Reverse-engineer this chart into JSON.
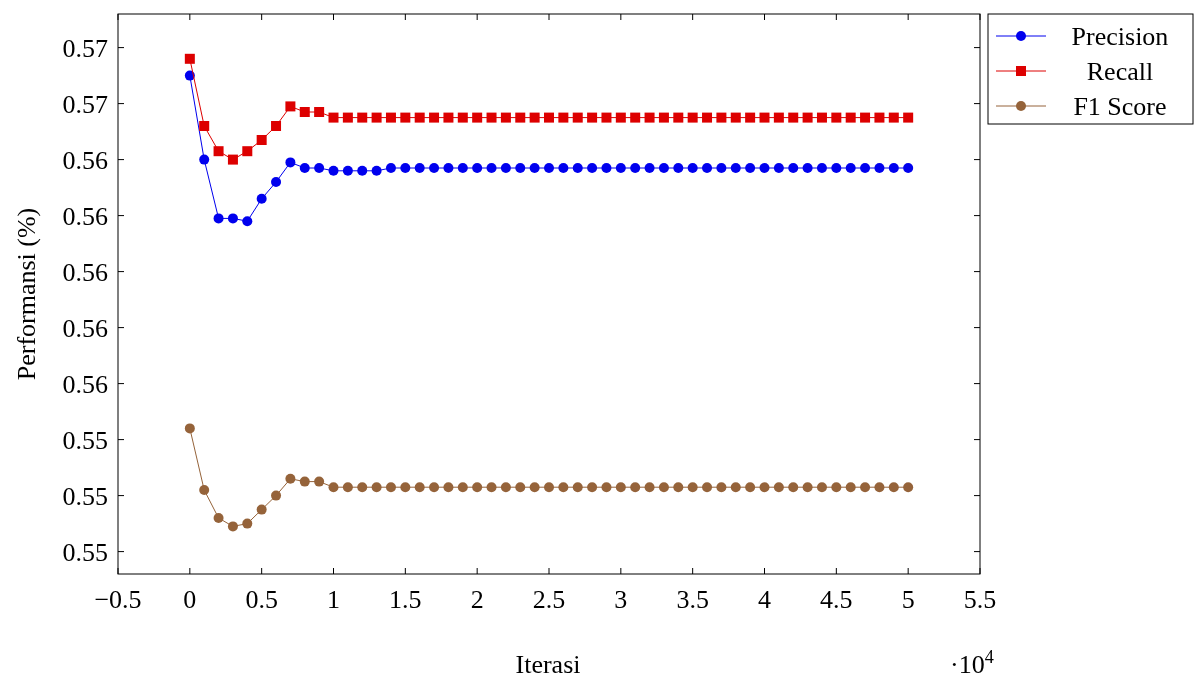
{
  "chart_data": {
    "type": "line",
    "xlabel": "Iterasi",
    "ylabel": "Performansi (%)",
    "annotations": [
      "·10$^{4}$"
    ],
    "x": [
      0,
      0.1,
      0.2,
      0.3,
      0.4,
      0.5,
      0.6,
      0.7,
      0.8,
      0.9,
      1,
      1.1,
      1.2,
      1.3,
      1.4,
      1.5,
      1.6,
      1.7,
      1.8,
      1.9,
      2,
      2.1,
      2.2,
      2.3,
      2.4,
      2.5,
      2.6,
      2.7,
      2.8,
      2.9,
      3,
      3.1,
      3.2,
      3.3,
      3.4,
      3.5,
      3.6,
      3.7,
      3.8,
      3.9,
      4,
      4.1,
      4.2,
      4.3,
      4.4,
      4.5,
      4.6,
      4.7,
      4.8,
      4.9,
      5
    ],
    "xlim": [
      -0.5,
      5.5
    ],
    "xticks": [
      {
        "value": -0.5,
        "label": "−0.5"
      },
      0,
      0.5,
      1,
      1.5,
      2,
      2.5,
      3,
      3.5,
      4,
      4.5,
      5,
      5.5
    ],
    "ylim": [
      0.5482,
      0.5682
    ],
    "yticks": [
      {
        "value": 0.549,
        "label": "0.55"
      },
      {
        "value": 0.551,
        "label": "0.55"
      },
      {
        "value": 0.553,
        "label": "0.55"
      },
      {
        "value": 0.555,
        "label": "0.56"
      },
      {
        "value": 0.557,
        "label": "0.56"
      },
      {
        "value": 0.559,
        "label": "0.56"
      },
      {
        "value": 0.561,
        "label": "0.56"
      },
      {
        "value": 0.563,
        "label": "0.56"
      },
      {
        "value": 0.565,
        "label": "0.57"
      },
      {
        "value": 0.567,
        "label": "0.57"
      }
    ],
    "grid": false,
    "legend": "top right",
    "line_style": "solid",
    "series": [
      {
        "name": "Precision",
        "color": "#0000ee",
        "marker": "circle",
        "values": [
          0.566,
          0.563,
          0.5609,
          0.5609,
          0.5608,
          0.5616,
          0.5622,
          0.5629,
          0.5627,
          0.5627,
          0.5626,
          0.5626,
          0.5626,
          0.5626,
          0.5627,
          0.5627,
          0.5627,
          0.5627,
          0.5627,
          0.5627,
          0.5627,
          0.5627,
          0.5627,
          0.5627,
          0.5627,
          0.5627,
          0.5627,
          0.5627,
          0.5627,
          0.5627,
          0.5627,
          0.5627,
          0.5627,
          0.5627,
          0.5627,
          0.5627,
          0.5627,
          0.5627,
          0.5627,
          0.5627,
          0.5627,
          0.5627,
          0.5627,
          0.5627,
          0.5627,
          0.5627,
          0.5627,
          0.5627,
          0.5627,
          0.5627,
          0.5627
        ]
      },
      {
        "name": "Recall",
        "color": "#dd0000",
        "marker": "square",
        "values": [
          0.5666,
          0.5642,
          0.5633,
          0.563,
          0.5633,
          0.5637,
          0.5642,
          0.5649,
          0.5647,
          0.5647,
          0.5645,
          0.5645,
          0.5645,
          0.5645,
          0.5645,
          0.5645,
          0.5645,
          0.5645,
          0.5645,
          0.5645,
          0.5645,
          0.5645,
          0.5645,
          0.5645,
          0.5645,
          0.5645,
          0.5645,
          0.5645,
          0.5645,
          0.5645,
          0.5645,
          0.5645,
          0.5645,
          0.5645,
          0.5645,
          0.5645,
          0.5645,
          0.5645,
          0.5645,
          0.5645,
          0.5645,
          0.5645,
          0.5645,
          0.5645,
          0.5645,
          0.5645,
          0.5645,
          0.5645,
          0.5645,
          0.5645,
          0.5645
        ]
      },
      {
        "name": "F1 Score",
        "color": "#95633a",
        "marker": "circle",
        "values": [
          0.5534,
          0.5512,
          0.5502,
          0.5499,
          0.55,
          0.5505,
          0.551,
          0.5516,
          0.5515,
          0.5515,
          0.5513,
          0.5513,
          0.5513,
          0.5513,
          0.5513,
          0.5513,
          0.5513,
          0.5513,
          0.5513,
          0.5513,
          0.5513,
          0.5513,
          0.5513,
          0.5513,
          0.5513,
          0.5513,
          0.5513,
          0.5513,
          0.5513,
          0.5513,
          0.5513,
          0.5513,
          0.5513,
          0.5513,
          0.5513,
          0.5513,
          0.5513,
          0.5513,
          0.5513,
          0.5513,
          0.5513,
          0.5513,
          0.5513,
          0.5513,
          0.5513,
          0.5513,
          0.5513,
          0.5513,
          0.5513,
          0.5513,
          0.5513
        ]
      }
    ]
  }
}
